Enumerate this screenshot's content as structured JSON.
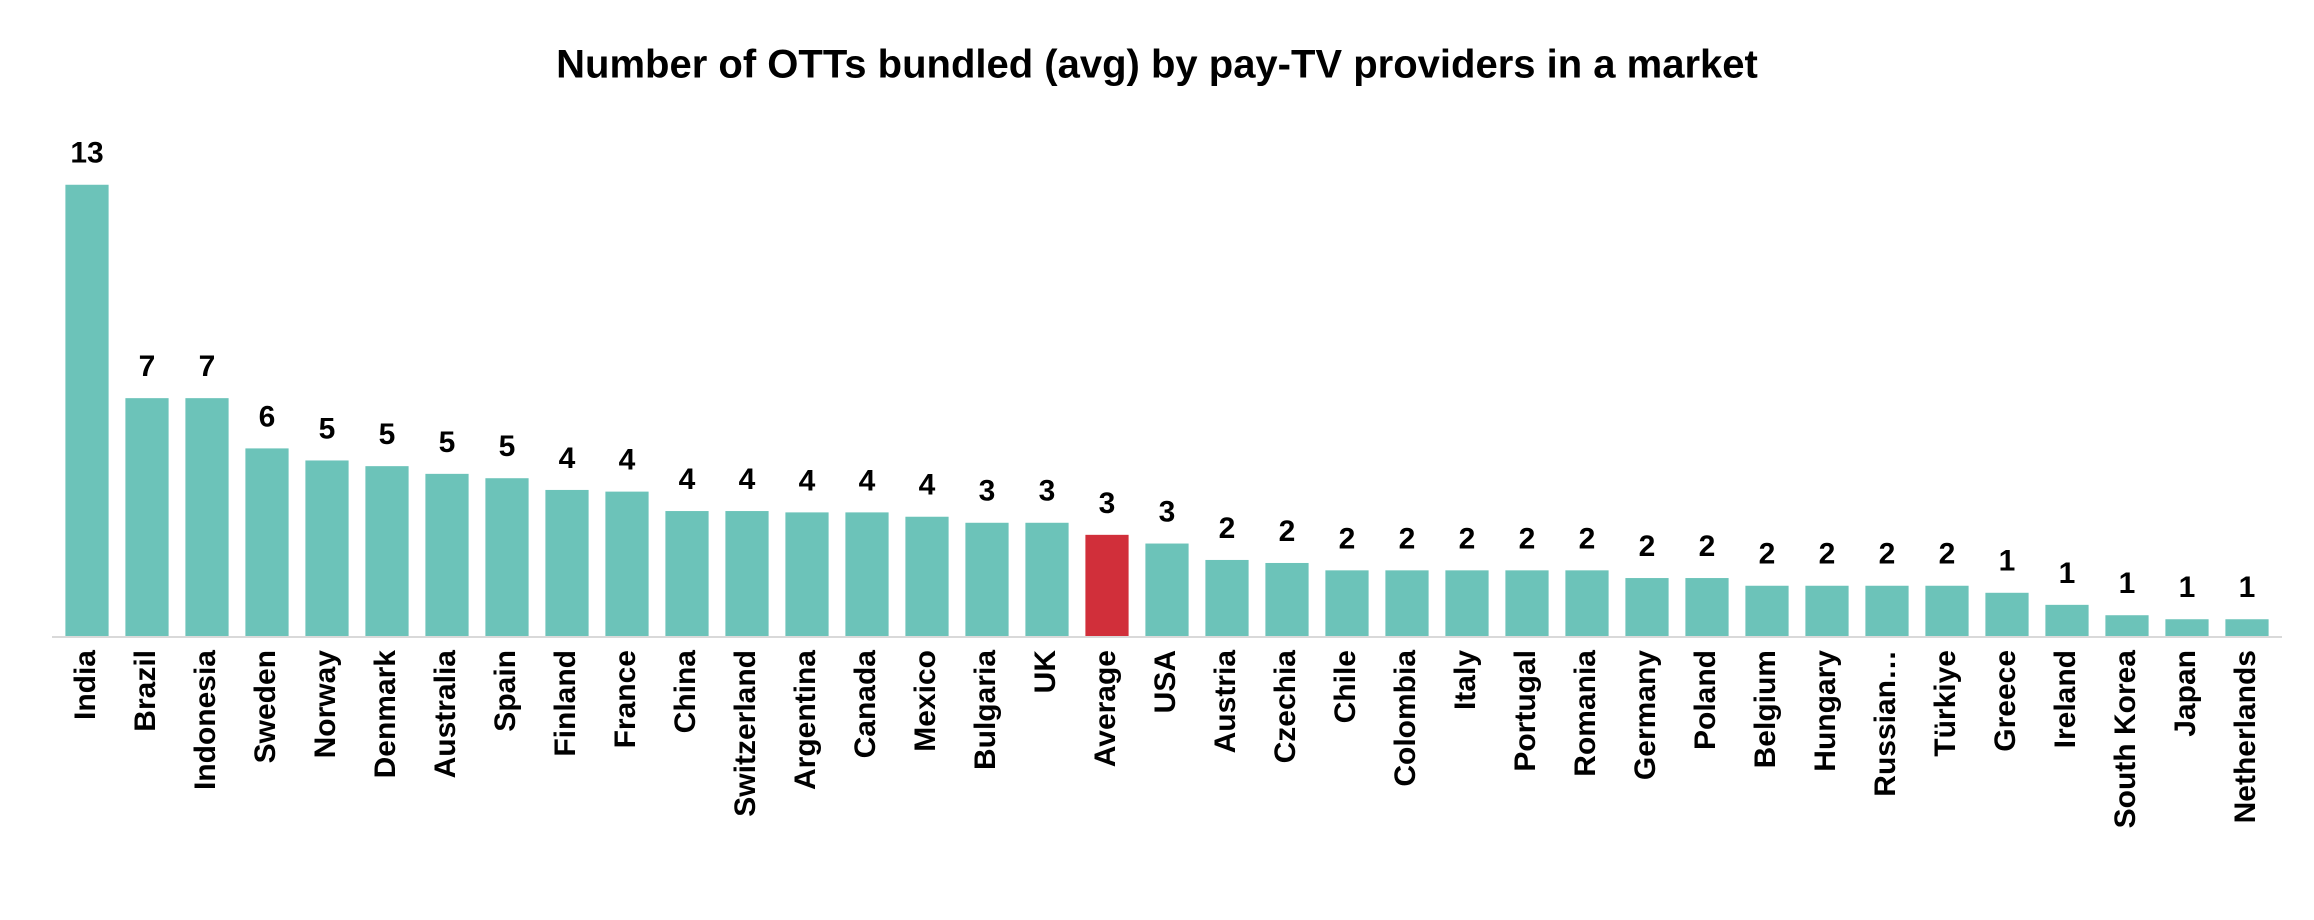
{
  "chart_data": {
    "type": "bar",
    "title": "Number of OTTs bundled (avg) by pay-TV providers in a market",
    "categories": [
      "India",
      "Brazil",
      "Indonesia",
      "Sweden",
      "Norway",
      "Denmark",
      "Australia",
      "Spain",
      "Finland",
      "France",
      "China",
      "Switzerland",
      "Argentina",
      "Canada",
      "Mexico",
      "Bulgaria",
      "UK",
      "Average",
      "USA",
      "Austria",
      "Czechia",
      "Chile",
      "Colombia",
      "Italy",
      "Portugal",
      "Romania",
      "Germany",
      "Poland",
      "Belgium",
      "Hungary",
      "Russian…",
      "Türkiye",
      "Greece",
      "Ireland",
      "South Korea",
      "Japan",
      "Netherlands"
    ],
    "values": [
      13.47,
      7.1,
      7.1,
      5.6,
      5.24,
      5.07,
      4.84,
      4.71,
      4.36,
      4.31,
      3.73,
      3.73,
      3.69,
      3.69,
      3.56,
      3.38,
      3.38,
      3.02,
      2.76,
      2.27,
      2.18,
      1.96,
      1.96,
      1.96,
      1.96,
      1.96,
      1.73,
      1.73,
      1.5,
      1.5,
      1.5,
      1.5,
      1.29,
      0.93,
      0.62,
      0.5,
      0.5
    ],
    "value_labels": [
      "13",
      "7",
      "7",
      "6",
      "5",
      "5",
      "5",
      "5",
      "4",
      "4",
      "4",
      "4",
      "4",
      "4",
      "4",
      "3",
      "3",
      "3",
      "3",
      "2",
      "2",
      "2",
      "2",
      "2",
      "2",
      "2",
      "2",
      "2",
      "2",
      "2",
      "2",
      "2",
      "1",
      "1",
      "1",
      "1",
      "1"
    ],
    "colors": [
      "#6cc3b9",
      "#6cc3b9",
      "#6cc3b9",
      "#6cc3b9",
      "#6cc3b9",
      "#6cc3b9",
      "#6cc3b9",
      "#6cc3b9",
      "#6cc3b9",
      "#6cc3b9",
      "#6cc3b9",
      "#6cc3b9",
      "#6cc3b9",
      "#6cc3b9",
      "#6cc3b9",
      "#6cc3b9",
      "#6cc3b9",
      "#d12f3a",
      "#6cc3b9",
      "#6cc3b9",
      "#6cc3b9",
      "#6cc3b9",
      "#6cc3b9",
      "#6cc3b9",
      "#6cc3b9",
      "#6cc3b9",
      "#6cc3b9",
      "#6cc3b9",
      "#6cc3b9",
      "#6cc3b9",
      "#6cc3b9",
      "#6cc3b9",
      "#6cc3b9",
      "#6cc3b9",
      "#6cc3b9",
      "#6cc3b9",
      "#6cc3b9"
    ]
  }
}
